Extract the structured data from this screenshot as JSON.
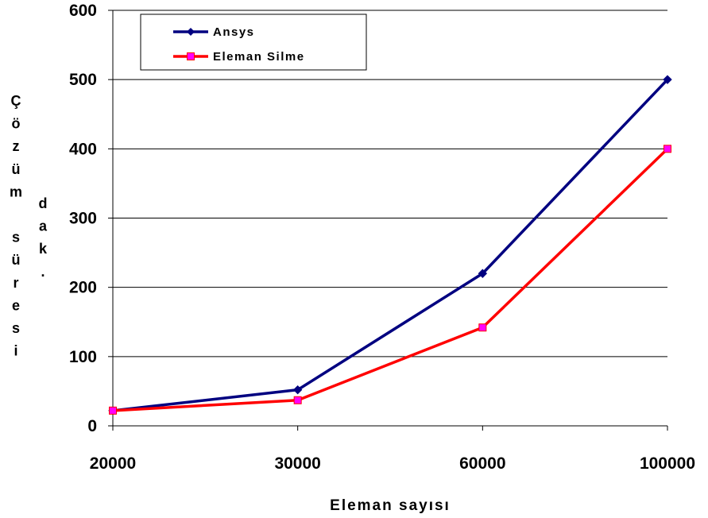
{
  "chart_data": {
    "type": "line",
    "title": "",
    "xlabel": "Eleman sayısı",
    "ylabel": "Çözüm süresi dak.",
    "categories": [
      "20000",
      "30000",
      "60000",
      "100000"
    ],
    "ylim": [
      0,
      600
    ],
    "yticks": [
      "0",
      "100",
      "200",
      "300",
      "400",
      "500",
      "600"
    ],
    "grid": "horizontal",
    "legend_position": "top-left",
    "series": [
      {
        "name": "Ansys",
        "values": [
          22,
          52,
          220,
          500
        ],
        "color": "#000080",
        "marker": "diamond"
      },
      {
        "name": "Eleman Silme",
        "values": [
          22,
          37,
          142,
          400
        ],
        "color": "#ff0000",
        "marker": "square",
        "marker_fill": "#ff00ff"
      }
    ],
    "ylabel_columns": [
      [
        "Ç",
        "ö",
        "z",
        "ü",
        "m",
        "",
        "s",
        "ü",
        "r",
        "e",
        "s",
        "i"
      ],
      [
        "d",
        "a",
        "k",
        "."
      ]
    ]
  }
}
